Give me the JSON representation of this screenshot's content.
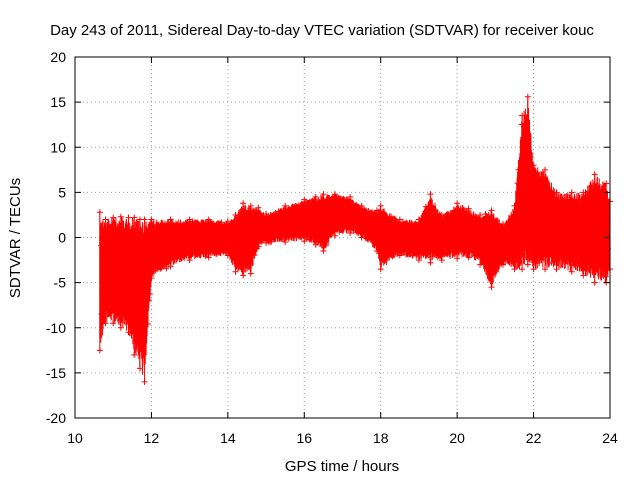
{
  "chart_data": {
    "type": "scatter",
    "title": "Day 243 of 2011, Sidereal Day-to-day VTEC variation (SDTVAR) for receiver kouc",
    "xlabel": "GPS time / hours",
    "ylabel": "SDTVAR / TECUs",
    "xlim": [
      10,
      24
    ],
    "ylim": [
      -20,
      20
    ],
    "x_ticks": [
      "10",
      "12",
      "14",
      "16",
      "18",
      "20",
      "22",
      "24"
    ],
    "y_ticks": [
      "20",
      "15",
      "10",
      "5",
      "0",
      "-5",
      "-10",
      "-15",
      "-20"
    ],
    "grid": true,
    "marker": "+",
    "color": "#ff0000",
    "series": [
      {
        "name": "SDTVAR",
        "envelope": [
          {
            "x": 10.65,
            "low": -12.5,
            "high": 2.8
          },
          {
            "x": 10.8,
            "low": -9.5,
            "high": 2.0
          },
          {
            "x": 11.0,
            "low": -9.5,
            "high": 2.2
          },
          {
            "x": 11.2,
            "low": -10.0,
            "high": 2.3
          },
          {
            "x": 11.4,
            "low": -10.5,
            "high": 2.2
          },
          {
            "x": 11.55,
            "low": -13.0,
            "high": 2.2
          },
          {
            "x": 11.7,
            "low": -14.5,
            "high": 2.0
          },
          {
            "x": 11.82,
            "low": -16.0,
            "high": 2.0
          },
          {
            "x": 12.0,
            "low": -4.5,
            "high": 2.0
          },
          {
            "x": 12.5,
            "low": -3.2,
            "high": 2.0
          },
          {
            "x": 13.0,
            "low": -2.5,
            "high": 2.0
          },
          {
            "x": 13.5,
            "low": -2.2,
            "high": 2.0
          },
          {
            "x": 14.0,
            "low": -2.0,
            "high": 1.8
          },
          {
            "x": 14.2,
            "low": -3.8,
            "high": 2.5
          },
          {
            "x": 14.4,
            "low": -4.2,
            "high": 3.8
          },
          {
            "x": 14.6,
            "low": -4.0,
            "high": 3.5
          },
          {
            "x": 14.8,
            "low": -1.0,
            "high": 3.3
          },
          {
            "x": 15.0,
            "low": -0.6,
            "high": 2.6
          },
          {
            "x": 15.5,
            "low": -0.5,
            "high": 3.5
          },
          {
            "x": 16.0,
            "low": -0.4,
            "high": 4.2
          },
          {
            "x": 16.3,
            "low": -0.8,
            "high": 4.5
          },
          {
            "x": 16.5,
            "low": -1.5,
            "high": 4.8
          },
          {
            "x": 16.8,
            "low": 0.2,
            "high": 4.8
          },
          {
            "x": 17.2,
            "low": 0.5,
            "high": 4.5
          },
          {
            "x": 17.5,
            "low": 0.0,
            "high": 3.5
          },
          {
            "x": 17.9,
            "low": -1.5,
            "high": 3.0
          },
          {
            "x": 18.0,
            "low": -3.5,
            "high": 3.5
          },
          {
            "x": 18.5,
            "low": -2.0,
            "high": 2.0
          },
          {
            "x": 19.0,
            "low": -2.5,
            "high": 2.0
          },
          {
            "x": 19.3,
            "low": -2.8,
            "high": 4.8
          },
          {
            "x": 19.6,
            "low": -2.5,
            "high": 2.5
          },
          {
            "x": 20.0,
            "low": -2.3,
            "high": 3.8
          },
          {
            "x": 20.3,
            "low": -2.2,
            "high": 3.2
          },
          {
            "x": 20.6,
            "low": -3.0,
            "high": 2.5
          },
          {
            "x": 20.9,
            "low": -5.5,
            "high": 3.0
          },
          {
            "x": 21.2,
            "low": -3.0,
            "high": 1.5
          },
          {
            "x": 21.5,
            "low": -3.5,
            "high": 3.5
          },
          {
            "x": 21.7,
            "low": -3.5,
            "high": 13.5
          },
          {
            "x": 21.85,
            "low": -3.0,
            "high": 15.6
          },
          {
            "x": 22.0,
            "low": -3.5,
            "high": 8.0
          },
          {
            "x": 22.3,
            "low": -3.5,
            "high": 7.5
          },
          {
            "x": 22.6,
            "low": -3.5,
            "high": 5.0
          },
          {
            "x": 23.0,
            "low": -3.8,
            "high": 5.0
          },
          {
            "x": 23.3,
            "low": -4.2,
            "high": 5.0
          },
          {
            "x": 23.6,
            "low": -5.0,
            "high": 7.0
          },
          {
            "x": 23.9,
            "low": -5.0,
            "high": 6.0
          },
          {
            "x": 24.0,
            "low": -3.5,
            "high": 4.0
          }
        ]
      }
    ]
  }
}
